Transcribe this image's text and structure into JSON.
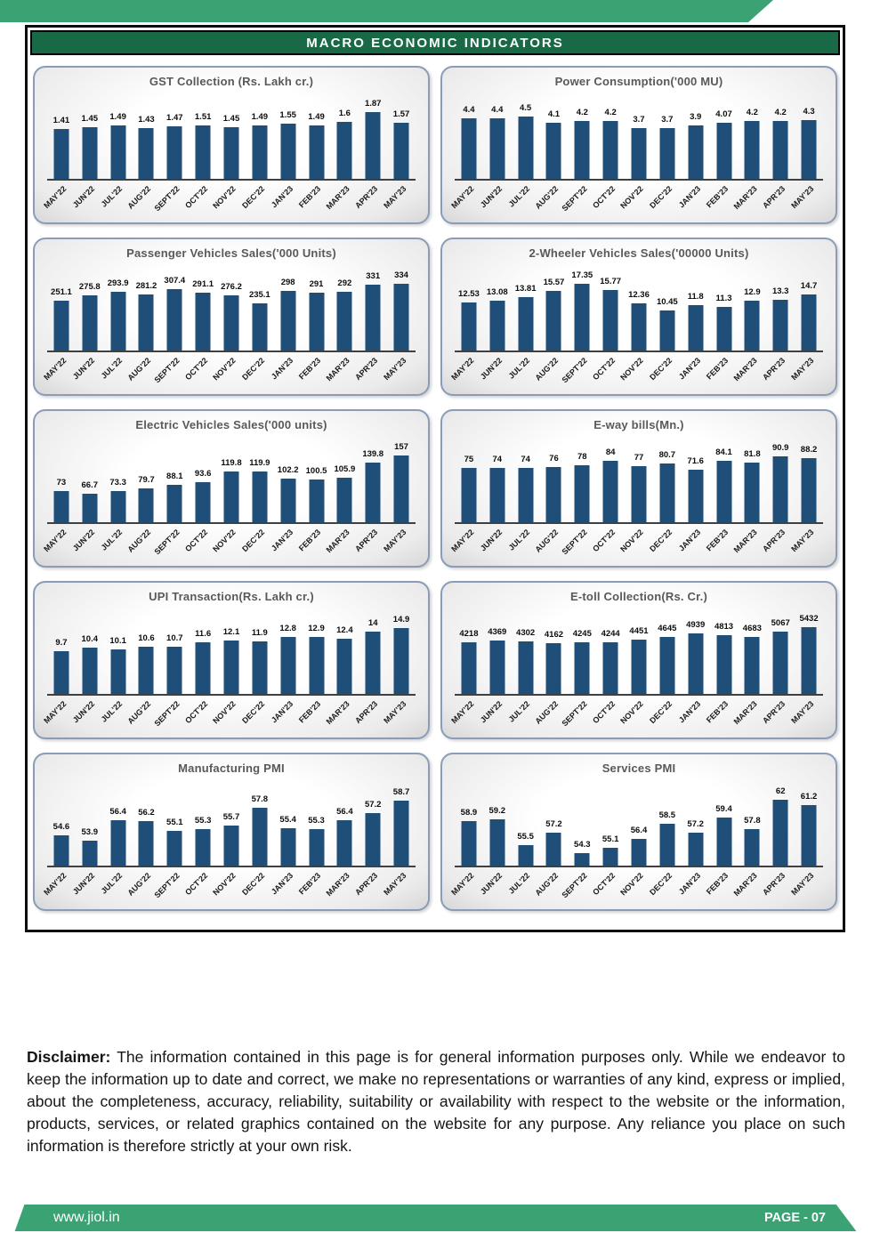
{
  "page": {
    "title_banner": "MACRO ECONOMIC INDICATORS",
    "disclaimer": {
      "label": "Disclaimer:",
      "text": "The information contained in this page is for general information purposes only.  While we endeavor to keep the information up to date and correct, we make no representations or warranties of any kind, express or implied, about the completeness, accuracy, reliability, suitability or availability with respect to the website or the information, products, services, or related graphics contained on the website for any purpose. Any reliance you place on such information is therefore strictly at your own risk."
    },
    "footer": {
      "website": "www.jiol.in",
      "page_label": "PAGE - 07"
    }
  },
  "colors": {
    "band_green": "#3AA273",
    "banner_green": "#186945",
    "bar_blue": "#1F4E79",
    "panel_border": "#8A9CB8",
    "axis_gray": "#404040",
    "title_gray": "#595959"
  },
  "chart_data": [
    {
      "type": "bar",
      "title": "GST Collection (Rs. Lakh cr.)",
      "categories": [
        "MAY'22",
        "JUN'22",
        "JUL'22",
        "AUG'22",
        "SEPT'22",
        "OCT'22",
        "NOV'22",
        "DEC'22",
        "JAN'23",
        "FEB'23",
        "MAR'23",
        "APR'23",
        "MAY'23"
      ],
      "values": [
        1.41,
        1.45,
        1.49,
        1.43,
        1.47,
        1.51,
        1.45,
        1.49,
        1.55,
        1.49,
        1.6,
        1.87,
        1.57
      ],
      "ylim": [
        0,
        2.05
      ],
      "grid": false,
      "legend": false
    },
    {
      "type": "bar",
      "title": "Power Consumption('000 MU)",
      "categories": [
        "MAY'22",
        "JUN'22",
        "JUL'22",
        "AUG'22",
        "SEPT'22",
        "OCT'22",
        "NOV'22",
        "DEC'22",
        "JAN'23",
        "FEB'23",
        "MAR'23",
        "APR'23",
        "MAY'23"
      ],
      "values": [
        4.4,
        4.4,
        4.5,
        4.1,
        4.2,
        4.2,
        3.7,
        3.7,
        3.9,
        4.07,
        4.2,
        4.2,
        4.3
      ],
      "ylim": [
        0,
        5.3
      ],
      "grid": false,
      "legend": false
    },
    {
      "type": "bar",
      "title": "Passenger Vehicles Sales('000 Units)",
      "categories": [
        "MAY'22",
        "JUN'22",
        "JUL'22",
        "AUG'22",
        "SEPT'22",
        "OCT'22",
        "NOV'22",
        "DEC'22",
        "JAN'23",
        "FEB'23",
        "MAR'23",
        "APR'23",
        "MAY'23"
      ],
      "values": [
        251.1,
        275.8,
        293.9,
        281.2,
        307.4,
        291.1,
        276.2,
        235.1,
        298,
        291,
        292,
        331,
        334
      ],
      "ylim": [
        0,
        365
      ],
      "grid": false,
      "legend": false
    },
    {
      "type": "bar",
      "title": "2-Wheeler Vehicles Sales('00000 Units)",
      "categories": [
        "MAY'22",
        "JUN'22",
        "JUL'22",
        "AUG'22",
        "SEPT'22",
        "OCT'22",
        "NOV'22",
        "DEC'22",
        "JAN'23",
        "FEB'23",
        "MAR'23",
        "APR'23",
        "MAY'23"
      ],
      "values": [
        12.53,
        13.08,
        13.81,
        15.57,
        17.35,
        15.77,
        12.36,
        10.45,
        11.8,
        11.3,
        12.9,
        13.3,
        14.7
      ],
      "ylim": [
        0,
        19
      ],
      "grid": false,
      "legend": false
    },
    {
      "type": "bar",
      "title": "Electric Vehicles Sales('000 units)",
      "categories": [
        "MAY'22",
        "JUN'22",
        "JUL'22",
        "AUG'22",
        "SEPT'22",
        "OCT'22",
        "NOV'22",
        "DEC'22",
        "JAN'23",
        "FEB'23",
        "MAR'23",
        "APR'23",
        "MAY'23"
      ],
      "values": [
        73,
        66.7,
        73.3,
        79.7,
        88.1,
        93.6,
        119.8,
        119.9,
        102.2,
        100.5,
        105.9,
        139.8,
        157
      ],
      "ylim": [
        0,
        172
      ],
      "grid": false,
      "legend": false
    },
    {
      "type": "bar",
      "title": "E-way bills(Mn.)",
      "categories": [
        "MAY'22",
        "JUN'22",
        "JUL'22",
        "AUG'22",
        "SEPT'22",
        "OCT'22",
        "NOV'22",
        "DEC'22",
        "JAN'23",
        "FEB'23",
        "MAR'23",
        "APR'23",
        "MAY'23"
      ],
      "values": [
        75,
        74,
        74,
        76,
        78,
        84,
        77,
        80.7,
        71.6,
        84.1,
        81.8,
        90.9,
        88.2
      ],
      "ylim": [
        0,
        100
      ],
      "grid": false,
      "legend": false
    },
    {
      "type": "bar",
      "title": "UPI Transaction(Rs. Lakh cr.)",
      "categories": [
        "MAY'22",
        "JUN'22",
        "JUL'22",
        "AUG'22",
        "SEPT'22",
        "OCT'22",
        "NOV'22",
        "DEC'22",
        "JAN'23",
        "FEB'23",
        "MAR'23",
        "APR'23",
        "MAY'23"
      ],
      "values": [
        9.7,
        10.4,
        10.1,
        10.6,
        10.7,
        11.6,
        12.1,
        11.9,
        12.8,
        12.9,
        12.4,
        14,
        14.9
      ],
      "ylim": [
        0,
        16.4
      ],
      "grid": false,
      "legend": false
    },
    {
      "type": "bar",
      "title": "E-toll Collection(Rs. Cr.)",
      "categories": [
        "MAY'22",
        "JUN'22",
        "JUL'22",
        "AUG'22",
        "SEPT'22",
        "OCT'22",
        "NOV'22",
        "DEC'22",
        "JAN'23",
        "FEB'23",
        "MAR'23",
        "APR'23",
        "MAY'23"
      ],
      "values": [
        4218,
        4369,
        4302,
        4162,
        4245,
        4244,
        4451,
        4645,
        4939,
        4813,
        4683,
        5067,
        5432
      ],
      "ylim": [
        0,
        5950
      ],
      "grid": false,
      "legend": false
    },
    {
      "type": "bar",
      "title": "Manufacturing PMI",
      "categories": [
        "MAY'22",
        "JUN'22",
        "JUL'22",
        "AUG'22",
        "SEPT'22",
        "OCT'22",
        "NOV'22",
        "DEC'22",
        "JAN'23",
        "FEB'23",
        "MAR'23",
        "APR'23",
        "MAY'23"
      ],
      "values": [
        54.6,
        53.9,
        56.4,
        56.2,
        55.1,
        55.3,
        55.7,
        57.8,
        55.4,
        55.3,
        56.4,
        57.2,
        58.7
      ],
      "ylim": [
        51,
        59.6
      ],
      "grid": false,
      "legend": false
    },
    {
      "type": "bar",
      "title": "Services PMI",
      "categories": [
        "MAY'22",
        "JUN'22",
        "JUL'22",
        "AUG'22",
        "SEPT'22",
        "OCT'22",
        "NOV'22",
        "DEC'22",
        "JAN'23",
        "FEB'23",
        "MAR'23",
        "APR'23",
        "MAY'23"
      ],
      "values": [
        58.9,
        59.2,
        55.5,
        57.2,
        54.3,
        55.1,
        56.4,
        58.5,
        57.2,
        59.4,
        57.8,
        62,
        61.2
      ],
      "ylim": [
        52.5,
        63
      ],
      "grid": false,
      "legend": false
    }
  ]
}
